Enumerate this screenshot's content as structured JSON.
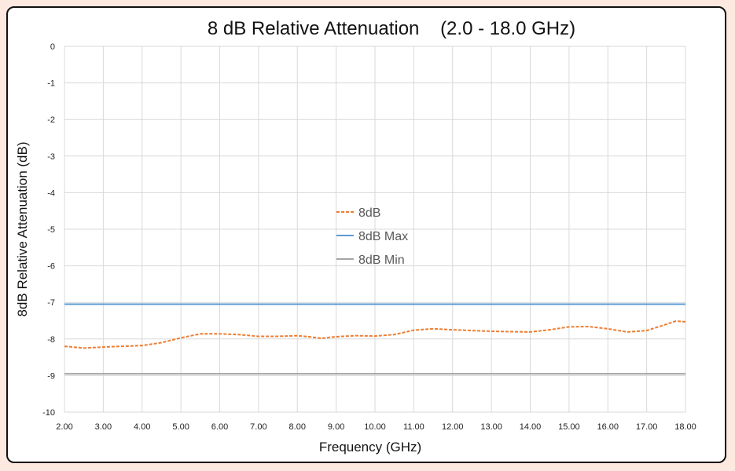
{
  "chart_data": {
    "type": "line",
    "title": "8 dB Relative Attenuation    (2.0 - 18.0 GHz)",
    "xlabel": "Frequency (GHz)",
    "ylabel": "8dB Relative Attenuation (dB)",
    "xlim": [
      2.0,
      18.0
    ],
    "ylim": [
      -10,
      0
    ],
    "x_ticks": [
      "2.00",
      "3.00",
      "4.00",
      "5.00",
      "6.00",
      "7.00",
      "8.00",
      "9.00",
      "10.00",
      "11.00",
      "12.00",
      "13.00",
      "14.00",
      "15.00",
      "16.00",
      "17.00",
      "18.00"
    ],
    "y_ticks": [
      "0",
      "-1",
      "-2",
      "-3",
      "-4",
      "-5",
      "-6",
      "-7",
      "-8",
      "-9",
      "-10"
    ],
    "grid": true,
    "legend_position": "center",
    "series": [
      {
        "name": "8dB",
        "color": "#ed7d31",
        "dash": "dashed",
        "x": [
          2.0,
          2.5,
          3.0,
          3.5,
          4.0,
          4.5,
          5.0,
          5.5,
          6.0,
          6.5,
          7.0,
          7.5,
          8.0,
          8.3,
          8.6,
          9.0,
          9.5,
          10.0,
          10.5,
          11.0,
          11.5,
          12.0,
          12.5,
          13.0,
          13.5,
          14.0,
          14.5,
          15.0,
          15.5,
          16.0,
          16.5,
          17.0,
          17.5,
          17.75,
          18.0
        ],
        "y": [
          -8.2,
          -8.25,
          -8.22,
          -8.2,
          -8.18,
          -8.1,
          -7.97,
          -7.86,
          -7.86,
          -7.88,
          -7.93,
          -7.93,
          -7.91,
          -7.94,
          -7.98,
          -7.94,
          -7.91,
          -7.92,
          -7.88,
          -7.76,
          -7.72,
          -7.75,
          -7.77,
          -7.79,
          -7.8,
          -7.81,
          -7.75,
          -7.67,
          -7.66,
          -7.72,
          -7.81,
          -7.77,
          -7.6,
          -7.51,
          -7.53
        ]
      },
      {
        "name": "8dB Max",
        "color": "#5b9bd5",
        "dash": "solid",
        "x": [
          2.0,
          18.0
        ],
        "y": [
          -7.05,
          -7.05
        ]
      },
      {
        "name": "8dB Min",
        "color": "#a5a5a5",
        "dash": "solid",
        "x": [
          2.0,
          18.0
        ],
        "y": [
          -8.95,
          -8.95
        ]
      }
    ]
  }
}
